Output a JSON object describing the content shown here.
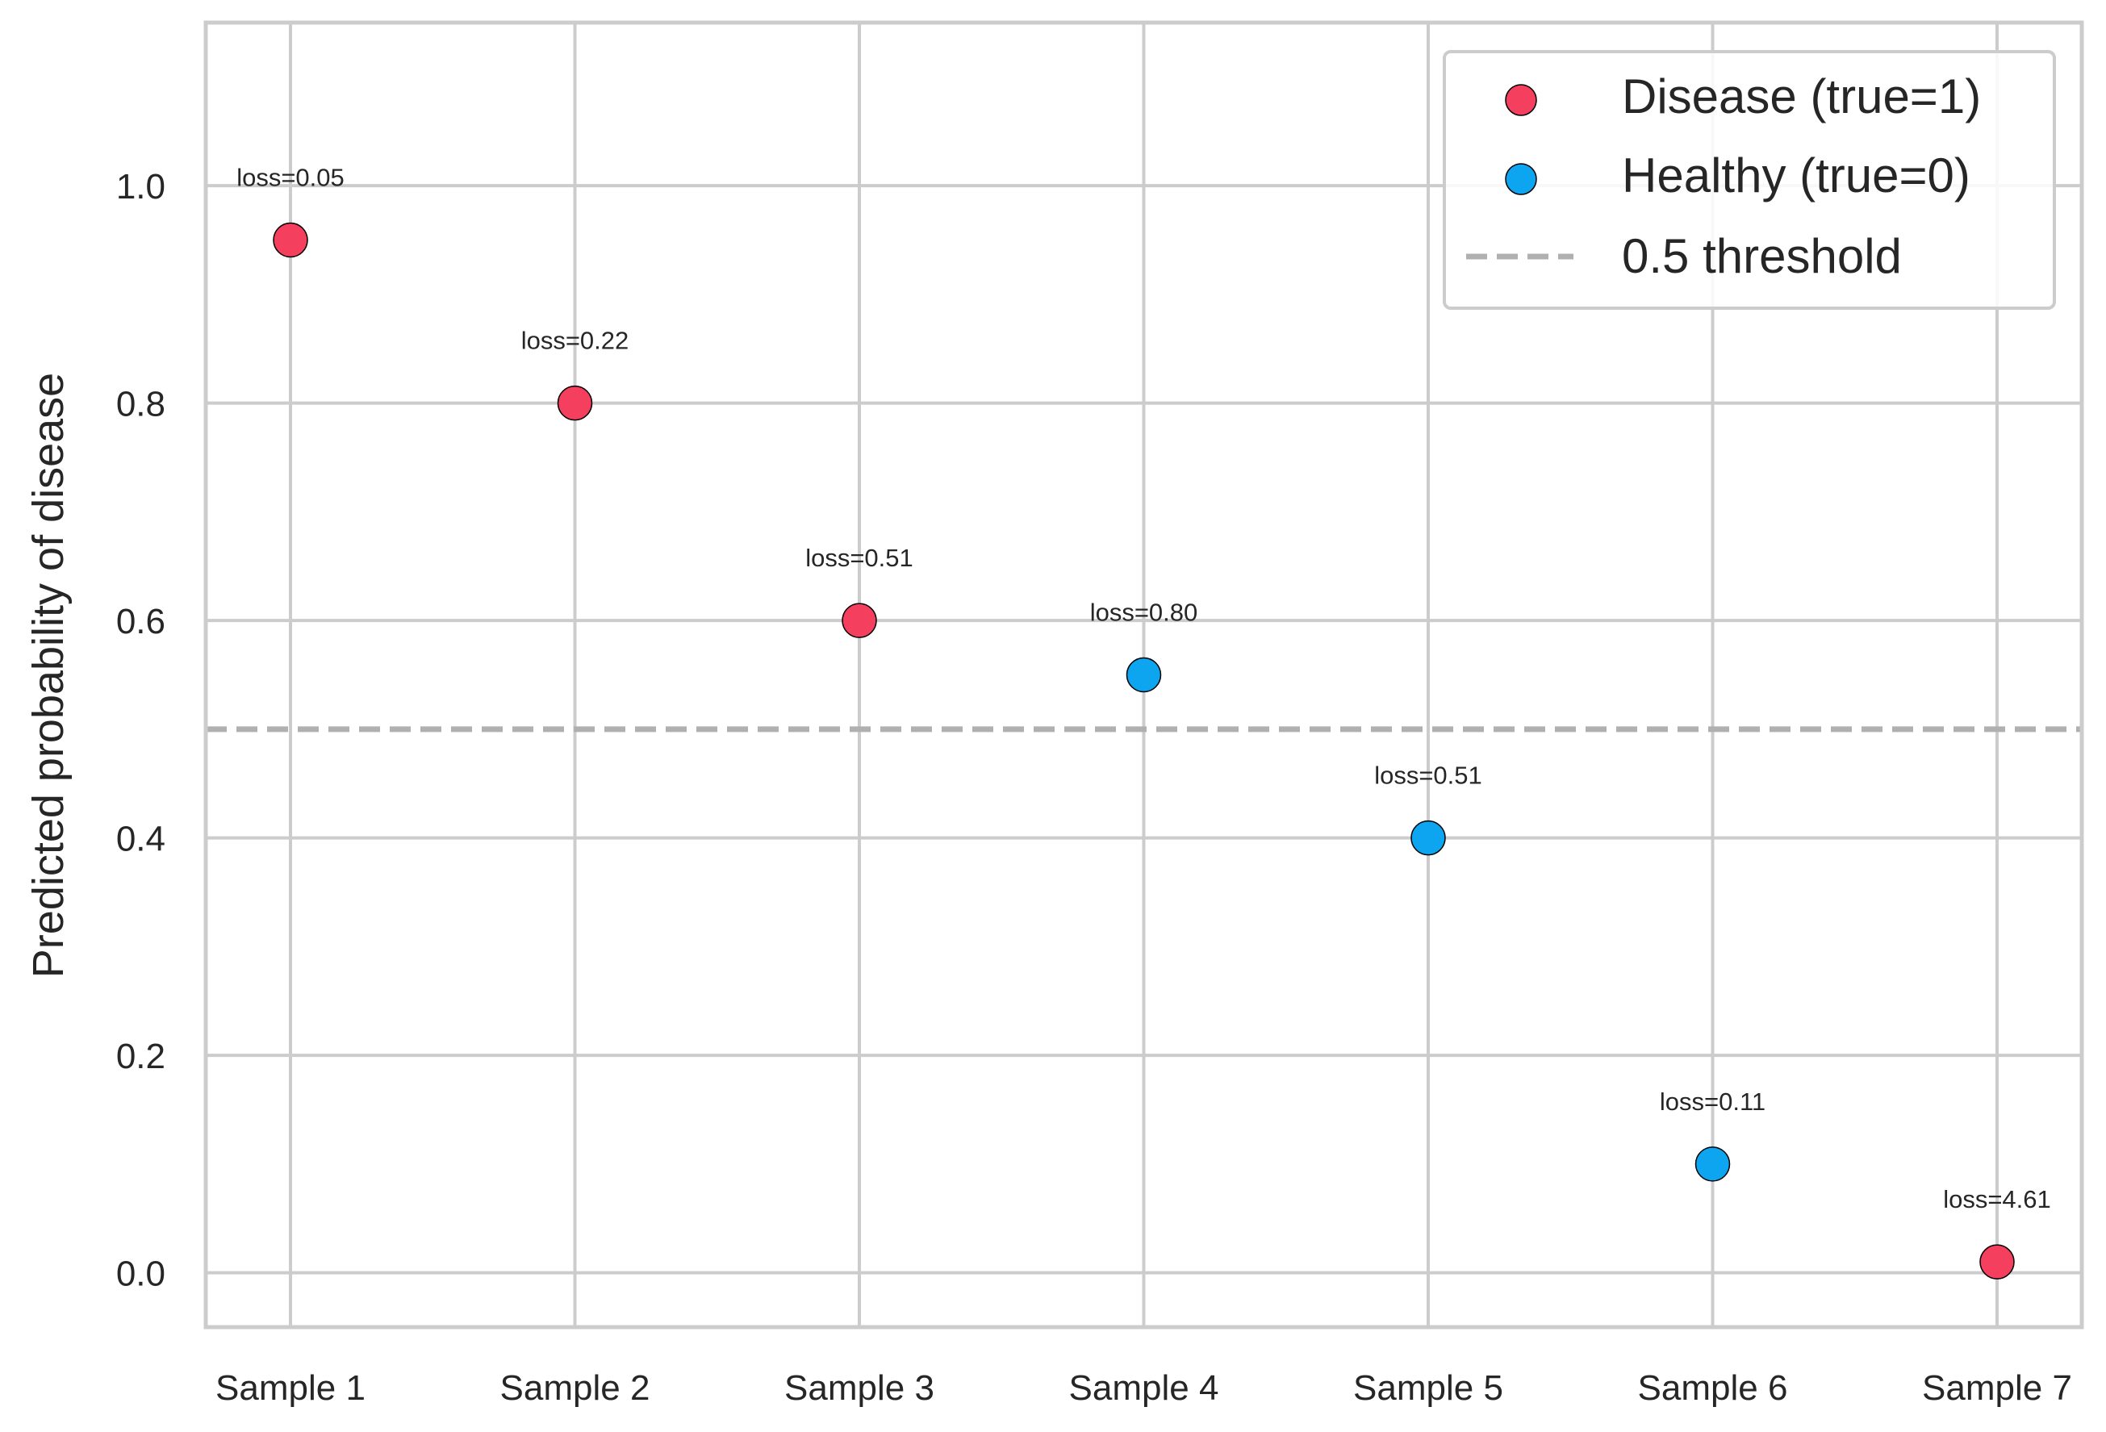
{
  "chart_data": {
    "type": "scatter",
    "title": "",
    "xlabel": "",
    "ylabel": "Predicted probability of disease",
    "categories": [
      "Sample 1",
      "Sample 2",
      "Sample 3",
      "Sample 4",
      "Sample 5",
      "Sample 6",
      "Sample 7"
    ],
    "ylim": [
      -0.05,
      1.15
    ],
    "yticks": [
      0.0,
      0.2,
      0.4,
      0.6,
      0.8,
      1.0
    ],
    "ytick_labels": [
      "0.0",
      "0.2",
      "0.4",
      "0.6",
      "0.8",
      "1.0"
    ],
    "grid": true,
    "legend_position": "top-right",
    "series": [
      {
        "name": "Disease (true=1)",
        "color": "#f43f5e",
        "points": [
          {
            "x": "Sample 1",
            "y": 0.95,
            "label": "loss=0.05"
          },
          {
            "x": "Sample 2",
            "y": 0.8,
            "label": "loss=0.22"
          },
          {
            "x": "Sample 3",
            "y": 0.6,
            "label": "loss=0.51"
          },
          {
            "x": "Sample 7",
            "y": 0.01,
            "label": "loss=4.61"
          }
        ]
      },
      {
        "name": "Healthy (true=0)",
        "color": "#0ea5f0",
        "points": [
          {
            "x": "Sample 4",
            "y": 0.55,
            "label": "loss=0.80"
          },
          {
            "x": "Sample 5",
            "y": 0.4,
            "label": "loss=0.51"
          },
          {
            "x": "Sample 6",
            "y": 0.1,
            "label": "loss=0.11"
          }
        ]
      }
    ],
    "threshold": {
      "name": "0.5 threshold",
      "y": 0.5,
      "color": "#b0b0b0",
      "style": "dashed"
    }
  }
}
